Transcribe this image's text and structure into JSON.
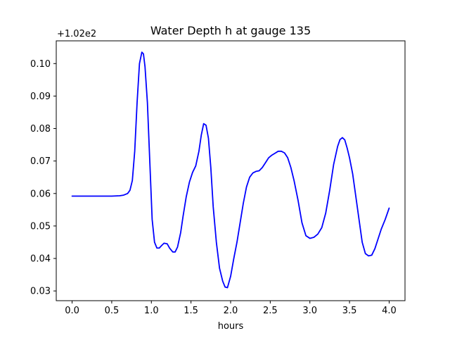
{
  "chart_data": {
    "type": "line",
    "title": "Water Depth h at gauge 135",
    "xlabel": "hours",
    "ylabel": "",
    "y_offset_label": "+1.02e2",
    "xlim": [
      -0.2,
      4.2
    ],
    "ylim": [
      0.027,
      0.107
    ],
    "x_ticks": [
      0.0,
      0.5,
      1.0,
      1.5,
      2.0,
      2.5,
      3.0,
      3.5,
      4.0
    ],
    "x_tick_labels": [
      "0.0",
      "0.5",
      "1.0",
      "1.5",
      "2.0",
      "2.5",
      "3.0",
      "3.5",
      "4.0"
    ],
    "y_ticks": [
      0.03,
      0.04,
      0.05,
      0.06,
      0.07,
      0.08,
      0.09,
      0.1
    ],
    "y_tick_labels": [
      "0.03",
      "0.04",
      "0.05",
      "0.06",
      "0.07",
      "0.08",
      "0.09",
      "0.10"
    ],
    "grid": false,
    "legend": "none",
    "series": [
      {
        "color": "#0000ff",
        "x": [
          0.0,
          0.2,
          0.4,
          0.5,
          0.6,
          0.65,
          0.7,
          0.73,
          0.76,
          0.79,
          0.82,
          0.85,
          0.88,
          0.9,
          0.92,
          0.95,
          0.98,
          1.01,
          1.04,
          1.07,
          1.1,
          1.13,
          1.16,
          1.2,
          1.23,
          1.27,
          1.3,
          1.33,
          1.37,
          1.4,
          1.44,
          1.48,
          1.52,
          1.56,
          1.6,
          1.63,
          1.66,
          1.69,
          1.72,
          1.75,
          1.78,
          1.82,
          1.86,
          1.9,
          1.93,
          1.96,
          2.0,
          2.04,
          2.08,
          2.12,
          2.16,
          2.2,
          2.24,
          2.28,
          2.32,
          2.36,
          2.4,
          2.44,
          2.48,
          2.52,
          2.56,
          2.6,
          2.64,
          2.68,
          2.72,
          2.76,
          2.8,
          2.85,
          2.9,
          2.95,
          3.0,
          3.05,
          3.1,
          3.15,
          3.2,
          3.25,
          3.3,
          3.35,
          3.38,
          3.41,
          3.44,
          3.47,
          3.5,
          3.54,
          3.58,
          3.62,
          3.66,
          3.7,
          3.74,
          3.78,
          3.82,
          3.86,
          3.9,
          3.95,
          4.0
        ],
        "y": [
          0.0592,
          0.0592,
          0.0592,
          0.0592,
          0.0593,
          0.0595,
          0.06,
          0.061,
          0.064,
          0.073,
          0.088,
          0.1,
          0.1035,
          0.103,
          0.099,
          0.088,
          0.07,
          0.052,
          0.045,
          0.0432,
          0.0432,
          0.044,
          0.0447,
          0.0445,
          0.0432,
          0.042,
          0.042,
          0.0435,
          0.048,
          0.053,
          0.059,
          0.0635,
          0.0665,
          0.0685,
          0.073,
          0.078,
          0.0815,
          0.081,
          0.077,
          0.068,
          0.056,
          0.045,
          0.037,
          0.033,
          0.0312,
          0.031,
          0.0345,
          0.04,
          0.045,
          0.051,
          0.057,
          0.062,
          0.065,
          0.0663,
          0.0668,
          0.067,
          0.068,
          0.0695,
          0.071,
          0.0718,
          0.0724,
          0.073,
          0.073,
          0.0725,
          0.071,
          0.068,
          0.064,
          0.058,
          0.051,
          0.047,
          0.0462,
          0.0465,
          0.0475,
          0.0495,
          0.054,
          0.061,
          0.069,
          0.0745,
          0.0766,
          0.0772,
          0.0765,
          0.074,
          0.071,
          0.066,
          0.059,
          0.052,
          0.045,
          0.0415,
          0.0408,
          0.041,
          0.043,
          0.046,
          0.049,
          0.052,
          0.0555
        ]
      }
    ]
  }
}
